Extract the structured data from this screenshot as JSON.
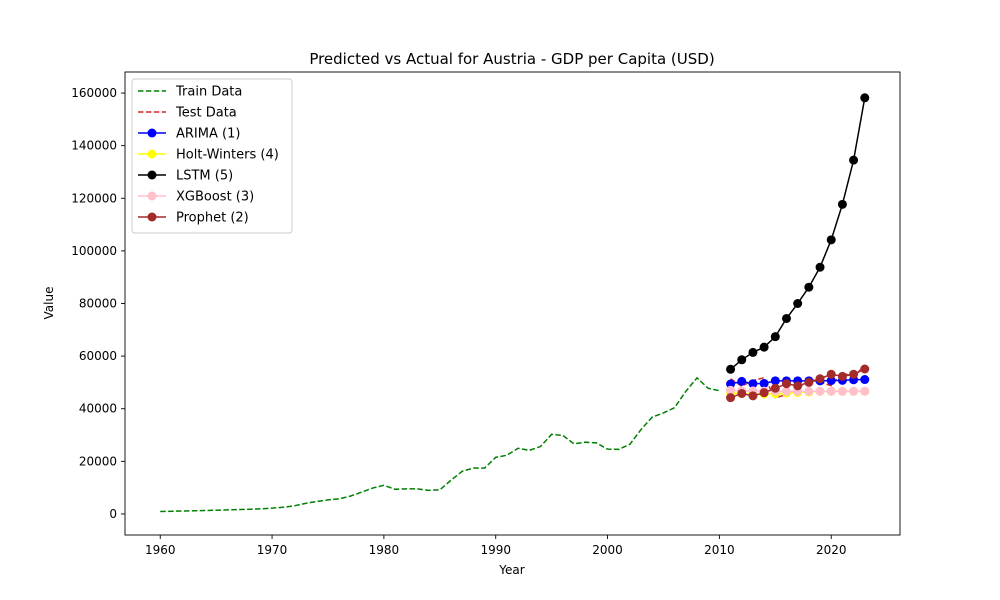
{
  "chart_data": {
    "type": "line",
    "title": "Predicted vs Actual for Austria - GDP per Capita (USD)",
    "xlabel": "Year",
    "ylabel": "Value",
    "xlim": [
      1956.85,
      2026.15
    ],
    "ylim": [
      -8000,
      168000
    ],
    "x_ticks": [
      1960,
      1970,
      1980,
      1990,
      2000,
      2010,
      2020
    ],
    "y_ticks": [
      0,
      20000,
      40000,
      60000,
      80000,
      100000,
      120000,
      140000,
      160000
    ],
    "x_tick_labels": [
      "1960",
      "1970",
      "1980",
      "1990",
      "2000",
      "2010",
      "2020"
    ],
    "y_tick_labels": [
      "0",
      "20000",
      "40000",
      "60000",
      "80000",
      "100000",
      "120000",
      "140000",
      "160000"
    ],
    "grid": false,
    "legend_position": "top-left",
    "series": [
      {
        "name": "Train Data",
        "color": "#008000",
        "style": "dashed",
        "marker": false,
        "x": [
          1960,
          1961,
          1962,
          1963,
          1964,
          1965,
          1966,
          1967,
          1968,
          1969,
          1970,
          1971,
          1972,
          1973,
          1974,
          1975,
          1976,
          1977,
          1978,
          1979,
          1980,
          1981,
          1982,
          1983,
          1984,
          1985,
          1986,
          1987,
          1988,
          1989,
          1990,
          1991,
          1992,
          1993,
          1994,
          1995,
          1996,
          1997,
          1998,
          1999,
          2000,
          2001,
          2002,
          2003,
          2004,
          2005,
          2006,
          2007,
          2008,
          2009,
          2010
        ],
        "y": [
          935,
          1033,
          1113,
          1204,
          1310,
          1418,
          1548,
          1661,
          1782,
          1951,
          2207,
          2549,
          3101,
          4032,
          4758,
          5338,
          5752,
          6774,
          8266,
          9850,
          10883,
          9367,
          9537,
          9541,
          8963,
          9158,
          12800,
          16231,
          17450,
          17402,
          21515,
          22327,
          24964,
          24160,
          25631,
          30269,
          29856,
          26653,
          27280,
          27008,
          24628,
          24563,
          26498,
          32126,
          36827,
          38404,
          40430,
          46635,
          51723,
          47778,
          46858
        ]
      },
      {
        "name": "Test Data",
        "color": "#d62728",
        "style": "dashed",
        "marker": false,
        "x": [
          2011,
          2012,
          2013,
          2014,
          2015,
          2016,
          2017,
          2018,
          2019,
          2020,
          2021,
          2022,
          2023
        ],
        "y": [
          51375,
          48564,
          50731,
          51786,
          44196,
          45307,
          47380,
          51466,
          50070,
          48767,
          53638,
          52085,
          56506
        ]
      },
      {
        "name": "ARIMA (1)",
        "color": "#0000ff",
        "style": "solid",
        "marker": true,
        "x": [
          2011,
          2012,
          2013,
          2014,
          2015,
          2016,
          2017,
          2018,
          2019,
          2020,
          2021,
          2022,
          2023
        ],
        "y": [
          49400,
          50400,
          49500,
          49600,
          50600,
          50600,
          50600,
          50600,
          50600,
          50700,
          50800,
          51000,
          51100
        ]
      },
      {
        "name": "Holt-Winters (4)",
        "color": "#ffff00",
        "style": "solid",
        "marker": true,
        "x": [
          2011,
          2012,
          2013,
          2014,
          2015,
          2016,
          2017,
          2018,
          2019,
          2020,
          2021,
          2022,
          2023
        ],
        "y": [
          46000,
          45800,
          45500,
          45600,
          45700,
          46000,
          46200,
          46400,
          46600,
          46600,
          46600,
          46600,
          46600
        ]
      },
      {
        "name": "LSTM (5)",
        "color": "#000000",
        "style": "solid",
        "marker": true,
        "x": [
          2011,
          2012,
          2013,
          2014,
          2015,
          2016,
          2017,
          2018,
          2019,
          2020,
          2021,
          2022,
          2023
        ],
        "y": [
          55000,
          58600,
          61400,
          63400,
          67400,
          74300,
          80000,
          86200,
          93800,
          104200,
          117700,
          134500,
          158200
        ]
      },
      {
        "name": "XGBoost (3)",
        "color": "#ffc0cb",
        "style": "solid",
        "marker": true,
        "x": [
          2011,
          2012,
          2013,
          2014,
          2015,
          2016,
          2017,
          2018,
          2019,
          2020,
          2021,
          2022,
          2023
        ],
        "y": [
          47000,
          46800,
          46800,
          46700,
          46700,
          46600,
          46600,
          46600,
          46600,
          46600,
          46600,
          46600,
          46600
        ]
      },
      {
        "name": "Prophet (2)",
        "color": "#a52a2a",
        "style": "solid",
        "marker": true,
        "x": [
          2011,
          2012,
          2013,
          2014,
          2015,
          2016,
          2017,
          2018,
          2019,
          2020,
          2021,
          2022,
          2023
        ],
        "y": [
          44200,
          45800,
          44900,
          46100,
          47800,
          49500,
          48700,
          50000,
          51400,
          53100,
          52300,
          53100,
          55100
        ]
      }
    ]
  }
}
